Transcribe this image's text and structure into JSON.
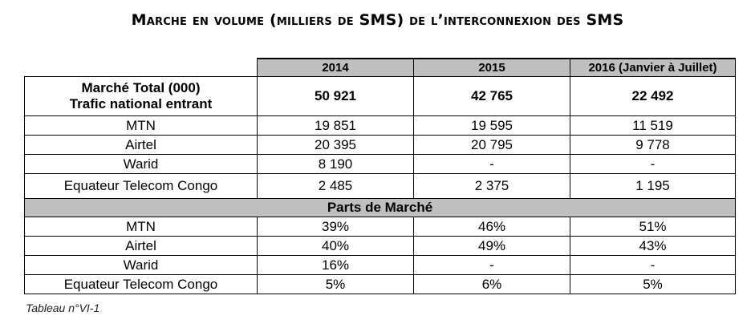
{
  "title": "Marche en volume (milliers de SMS) de l’interconnexion des SMS",
  "table": {
    "columns": [
      "2014",
      "2015",
      "2016 (Janvier à Juillet)"
    ],
    "total": {
      "label_line1": "Marché Total (000)",
      "label_line2": "Trafic national entrant",
      "values": [
        "50 921",
        "42 765",
        "22 492"
      ]
    },
    "volume_rows": [
      {
        "label": "MTN",
        "values": [
          "19 851",
          "19 595",
          "11 519"
        ]
      },
      {
        "label": "Airtel",
        "values": [
          "20 395",
          "20 795",
          "9 778"
        ]
      },
      {
        "label": "Warid",
        "values": [
          "8 190",
          "-",
          "-"
        ]
      },
      {
        "label": "Equateur Telecom Congo",
        "values": [
          "2 485",
          "2 375",
          "1 195"
        ]
      }
    ],
    "section_label": "Parts de Marché",
    "share_rows": [
      {
        "label": "MTN",
        "values": [
          "39%",
          "46%",
          "51%"
        ]
      },
      {
        "label": "Airtel",
        "values": [
          "40%",
          "49%",
          "43%"
        ]
      },
      {
        "label": "Warid",
        "values": [
          "16%",
          "-",
          "-"
        ]
      },
      {
        "label": "Equateur Telecom Congo",
        "values": [
          "5%",
          "6%",
          "5%"
        ]
      }
    ]
  },
  "caption": "Tableau n°VI-1"
}
